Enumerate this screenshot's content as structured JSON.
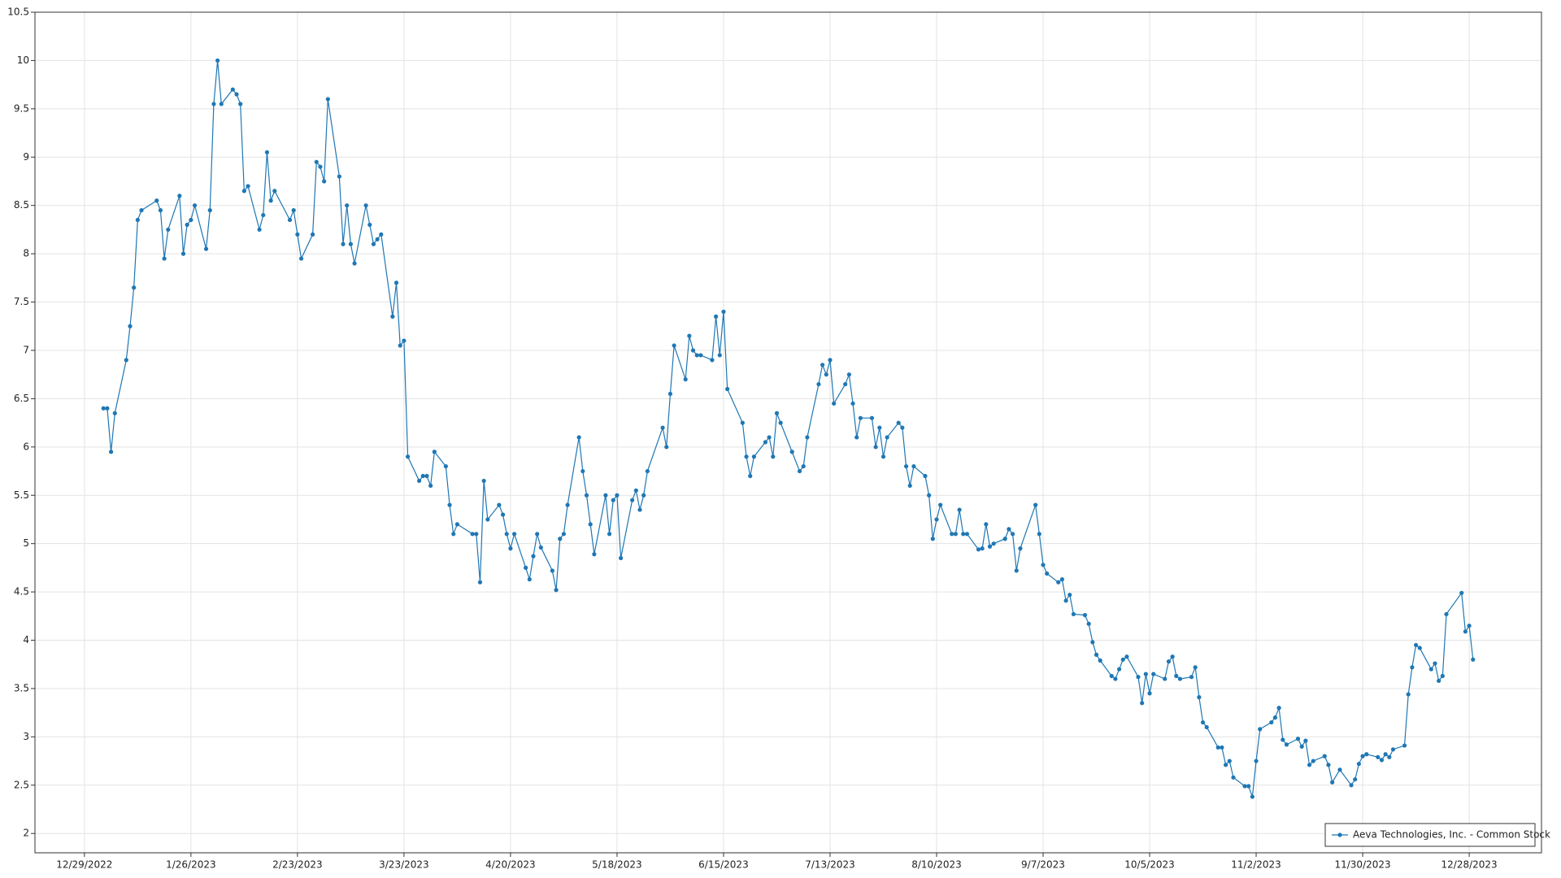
{
  "chart_data": {
    "type": "line",
    "x": [
      "1/3/2023",
      "1/4/2023",
      "1/5/2023",
      "1/6/2023",
      "1/9/2023",
      "1/10/2023",
      "1/11/2023",
      "1/12/2023",
      "1/13/2023",
      "1/17/2023",
      "1/18/2023",
      "1/19/2023",
      "1/20/2023",
      "1/23/2023",
      "1/24/2023",
      "1/25/2023",
      "1/26/2023",
      "1/27/2023",
      "1/30/2023",
      "1/31/2023",
      "2/1/2023",
      "2/2/2023",
      "2/3/2023",
      "2/6/2023",
      "2/7/2023",
      "2/8/2023",
      "2/9/2023",
      "2/10/2023",
      "2/13/2023",
      "2/14/2023",
      "2/15/2023",
      "2/16/2023",
      "2/17/2023",
      "2/21/2023",
      "2/22/2023",
      "2/23/2023",
      "2/24/2023",
      "2/27/2023",
      "2/28/2023",
      "3/1/2023",
      "3/2/2023",
      "3/3/2023",
      "3/6/2023",
      "3/7/2023",
      "3/8/2023",
      "3/9/2023",
      "3/10/2023",
      "3/13/2023",
      "3/14/2023",
      "3/15/2023",
      "3/16/2023",
      "3/17/2023",
      "3/20/2023",
      "3/21/2023",
      "3/22/2023",
      "3/23/2023",
      "3/24/2023",
      "3/27/2023",
      "3/28/2023",
      "3/29/2023",
      "3/30/2023",
      "3/31/2023",
      "4/3/2023",
      "4/4/2023",
      "4/5/2023",
      "4/6/2023",
      "4/10/2023",
      "4/11/2023",
      "4/12/2023",
      "4/13/2023",
      "4/14/2023",
      "4/17/2023",
      "4/18/2023",
      "4/19/2023",
      "4/20/2023",
      "4/21/2023",
      "4/24/2023",
      "4/25/2023",
      "4/26/2023",
      "4/27/2023",
      "4/28/2023",
      "5/1/2023",
      "5/2/2023",
      "5/3/2023",
      "5/4/2023",
      "5/5/2023",
      "5/8/2023",
      "5/9/2023",
      "5/10/2023",
      "5/11/2023",
      "5/12/2023",
      "5/15/2023",
      "5/16/2023",
      "5/17/2023",
      "5/18/2023",
      "5/19/2023",
      "5/22/2023",
      "5/23/2023",
      "5/24/2023",
      "5/25/2023",
      "5/26/2023",
      "5/30/2023",
      "5/31/2023",
      "6/1/2023",
      "6/2/2023",
      "6/5/2023",
      "6/6/2023",
      "6/7/2023",
      "6/8/2023",
      "6/9/2023",
      "6/12/2023",
      "6/13/2023",
      "6/14/2023",
      "6/15/2023",
      "6/16/2023",
      "6/20/2023",
      "6/21/2023",
      "6/22/2023",
      "6/23/2023",
      "6/26/2023",
      "6/27/2023",
      "6/28/2023",
      "6/29/2023",
      "6/30/2023",
      "7/3/2023",
      "7/5/2023",
      "7/6/2023",
      "7/7/2023",
      "7/10/2023",
      "7/11/2023",
      "7/12/2023",
      "7/13/2023",
      "7/14/2023",
      "7/17/2023",
      "7/18/2023",
      "7/19/2023",
      "7/20/2023",
      "7/21/2023",
      "7/24/2023",
      "7/25/2023",
      "7/26/2023",
      "7/27/2023",
      "7/28/2023",
      "7/31/2023",
      "8/1/2023",
      "8/2/2023",
      "8/3/2023",
      "8/4/2023",
      "8/7/2023",
      "8/8/2023",
      "8/9/2023",
      "8/10/2023",
      "8/11/2023",
      "8/14/2023",
      "8/15/2023",
      "8/16/2023",
      "8/17/2023",
      "8/18/2023",
      "8/21/2023",
      "8/22/2023",
      "8/23/2023",
      "8/24/2023",
      "8/25/2023",
      "8/28/2023",
      "8/29/2023",
      "8/30/2023",
      "8/31/2023",
      "9/1/2023",
      "9/5/2023",
      "9/6/2023",
      "9/7/2023",
      "9/8/2023",
      "9/11/2023",
      "9/12/2023",
      "9/13/2023",
      "9/14/2023",
      "9/15/2023",
      "9/18/2023",
      "9/19/2023",
      "9/20/2023",
      "9/21/2023",
      "9/22/2023",
      "9/25/2023",
      "9/26/2023",
      "9/27/2023",
      "9/28/2023",
      "9/29/2023",
      "10/2/2023",
      "10/3/2023",
      "10/4/2023",
      "10/5/2023",
      "10/6/2023",
      "10/9/2023",
      "10/10/2023",
      "10/11/2023",
      "10/12/2023",
      "10/13/2023",
      "10/16/2023",
      "10/17/2023",
      "10/18/2023",
      "10/19/2023",
      "10/20/2023",
      "10/23/2023",
      "10/24/2023",
      "10/25/2023",
      "10/26/2023",
      "10/27/2023",
      "10/30/2023",
      "10/31/2023",
      "11/1/2023",
      "11/2/2023",
      "11/3/2023",
      "11/6/2023",
      "11/7/2023",
      "11/8/2023",
      "11/9/2023",
      "11/10/2023",
      "11/13/2023",
      "11/14/2023",
      "11/15/2023",
      "11/16/2023",
      "11/17/2023",
      "11/20/2023",
      "11/21/2023",
      "11/22/2023",
      "11/24/2023",
      "11/27/2023",
      "11/28/2023",
      "11/29/2023",
      "11/30/2023",
      "12/1/2023",
      "12/4/2023",
      "12/5/2023",
      "12/6/2023",
      "12/7/2023",
      "12/8/2023",
      "12/11/2023",
      "12/12/2023",
      "12/13/2023",
      "12/14/2023",
      "12/15/2023",
      "12/18/2023",
      "12/19/2023",
      "12/20/2023",
      "12/21/2023",
      "12/22/2023",
      "12/26/2023",
      "12/27/2023",
      "12/28/2023",
      "12/29/2023"
    ],
    "series": [
      {
        "name": "Aeva Technologies, Inc. - Common Stock",
        "color": "#1f77b4",
        "values": [
          6.4,
          6.4,
          5.95,
          6.35,
          6.9,
          7.25,
          7.65,
          8.35,
          8.45,
          8.55,
          8.45,
          7.95,
          8.25,
          8.6,
          8.0,
          8.3,
          8.35,
          8.5,
          8.05,
          8.45,
          9.55,
          10.0,
          9.55,
          9.7,
          9.65,
          9.55,
          8.65,
          8.7,
          8.25,
          8.4,
          9.05,
          8.55,
          8.65,
          8.35,
          8.45,
          8.2,
          7.95,
          8.2,
          8.95,
          8.9,
          8.75,
          9.6,
          8.8,
          8.1,
          8.5,
          8.1,
          7.9,
          8.5,
          8.3,
          8.1,
          8.15,
          8.2,
          7.35,
          7.7,
          7.05,
          7.1,
          5.9,
          5.65,
          5.7,
          5.7,
          5.6,
          5.95,
          5.8,
          5.4,
          5.1,
          5.2,
          5.1,
          5.1,
          4.6,
          5.65,
          5.25,
          5.4,
          5.3,
          5.1,
          4.95,
          5.1,
          4.75,
          4.63,
          4.87,
          5.1,
          4.96,
          4.72,
          4.52,
          5.05,
          5.1,
          5.4,
          6.1,
          5.75,
          5.5,
          5.2,
          4.89,
          5.5,
          5.1,
          5.45,
          5.5,
          4.85,
          5.45,
          5.55,
          5.35,
          5.5,
          5.75,
          6.2,
          6.0,
          6.55,
          7.05,
          6.7,
          7.15,
          7.0,
          6.95,
          6.95,
          6.9,
          7.35,
          6.95,
          7.4,
          6.6,
          6.25,
          5.9,
          5.7,
          5.9,
          6.05,
          6.1,
          5.9,
          6.35,
          6.25,
          5.95,
          5.75,
          5.8,
          6.1,
          6.65,
          6.85,
          6.75,
          6.9,
          6.45,
          6.65,
          6.75,
          6.45,
          6.1,
          6.3,
          6.3,
          6.0,
          6.2,
          5.9,
          6.1,
          6.25,
          6.2,
          5.8,
          5.6,
          5.8,
          5.7,
          5.5,
          5.05,
          5.25,
          5.4,
          5.1,
          5.1,
          5.35,
          5.1,
          5.1,
          4.94,
          4.95,
          5.2,
          4.97,
          5.0,
          5.05,
          5.15,
          5.1,
          4.72,
          4.95,
          5.4,
          5.1,
          4.78,
          4.69,
          4.6,
          4.63,
          4.41,
          4.47,
          4.27,
          4.26,
          4.17,
          3.98,
          3.85,
          3.79,
          3.63,
          3.6,
          3.7,
          3.8,
          3.83,
          3.62,
          3.35,
          3.65,
          3.45,
          3.65,
          3.6,
          3.78,
          3.83,
          3.63,
          3.6,
          3.62,
          3.72,
          3.41,
          3.15,
          3.1,
          2.89,
          2.89,
          2.71,
          2.75,
          2.58,
          2.49,
          2.49,
          2.38,
          2.75,
          3.08,
          3.15,
          3.2,
          3.3,
          2.97,
          2.92,
          2.98,
          2.9,
          2.96,
          2.71,
          2.75,
          2.8,
          2.71,
          2.53,
          2.66,
          2.5,
          2.56,
          2.72,
          2.8,
          2.82,
          2.79,
          2.76,
          2.82,
          2.79,
          2.87,
          2.91,
          3.44,
          3.72,
          3.95,
          3.92,
          3.7,
          3.76,
          3.58,
          3.63,
          4.27,
          4.49,
          4.09,
          4.15,
          3.8
        ]
      }
    ],
    "xlim": [
      "12/16/2022",
      "1/16/2024"
    ],
    "xticks": [
      "12/29/2022",
      "1/26/2023",
      "2/23/2023",
      "3/23/2023",
      "4/20/2023",
      "5/18/2023",
      "6/15/2023",
      "7/13/2023",
      "8/10/2023",
      "9/7/2023",
      "10/5/2023",
      "11/2/2023",
      "11/30/2023",
      "12/28/2023"
    ],
    "ylim": [
      1.8,
      10.5
    ],
    "yticks": [
      2,
      2.5,
      3,
      3.5,
      4,
      4.5,
      5,
      5.5,
      6,
      6.5,
      7,
      7.5,
      8,
      8.5,
      9,
      9.5,
      10,
      10.5
    ],
    "grid": true,
    "legend": "lower right"
  }
}
